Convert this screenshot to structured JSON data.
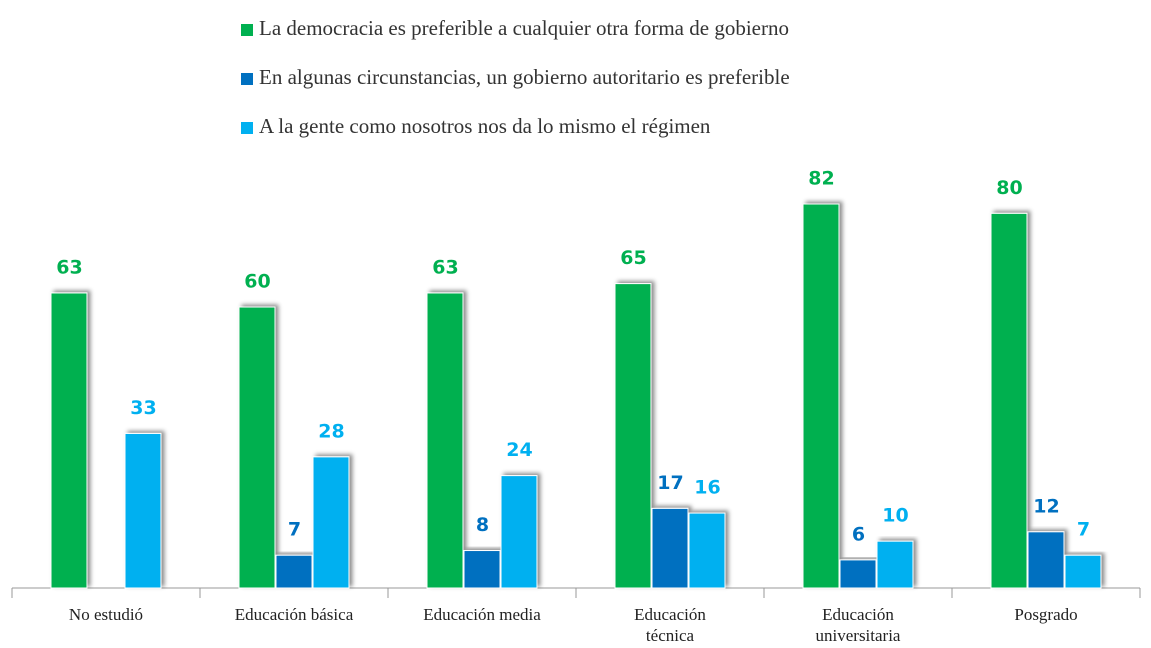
{
  "chart_data": {
    "type": "bar",
    "categories": [
      "No estudió",
      "Educación básica",
      "Educación media",
      "Educación técnica",
      "Educación universitaria",
      "Posgrado"
    ],
    "series": [
      {
        "name": "La democracia es preferible a cualquier otra forma de gobierno",
        "color": "#00b050",
        "values": [
          63,
          60,
          63,
          65,
          82,
          80
        ]
      },
      {
        "name": "En algunas circunstancias, un gobierno autoritario es preferible",
        "color": "#0070c0",
        "values": [
          null,
          7,
          8,
          17,
          6,
          12
        ]
      },
      {
        "name": "A la gente como nosotros nos da lo mismo el régimen",
        "color": "#00b0f0",
        "values": [
          33,
          28,
          24,
          16,
          10,
          7
        ]
      }
    ],
    "legend": "top"
  }
}
